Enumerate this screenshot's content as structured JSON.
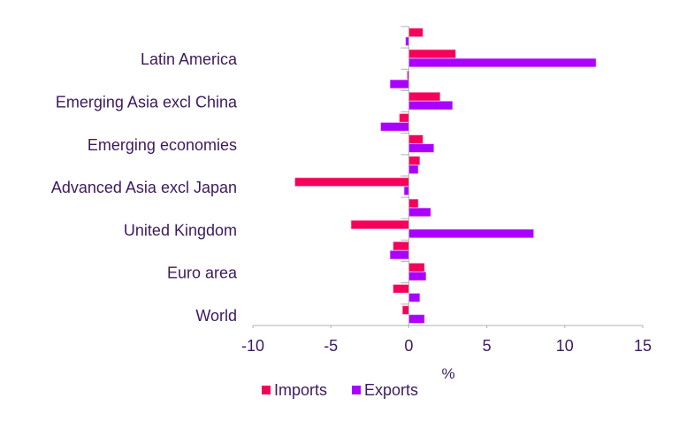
{
  "chart_data": {
    "type": "bar",
    "orientation": "horizontal",
    "categories": [
      "",
      "Latin America",
      "",
      "Emerging Asia excl China",
      "",
      "Emerging economies",
      "",
      "Advanced Asia excl Japan",
      "",
      "United Kingdom",
      "",
      "Euro area",
      "",
      "World"
    ],
    "series": [
      {
        "name": "Imports",
        "color": "#f5005a",
        "values": [
          0.9,
          3.0,
          -0.1,
          2.0,
          -0.6,
          0.9,
          0.7,
          -7.3,
          0.6,
          -3.7,
          -1.0,
          1.0,
          -1.0,
          -0.4
        ]
      },
      {
        "name": "Exports",
        "color": "#aa00ff",
        "values": [
          -0.2,
          12.0,
          -1.2,
          2.8,
          -1.8,
          1.6,
          0.6,
          -0.3,
          1.4,
          8.0,
          -1.2,
          1.1,
          0.7,
          1.0
        ]
      }
    ],
    "xlabel": "%",
    "ylabel": "",
    "xlim": [
      -10,
      15
    ],
    "xticks": [
      "-10",
      "-5",
      "0",
      "5",
      "10",
      "15"
    ],
    "legend": "bottom",
    "grid": false
  }
}
